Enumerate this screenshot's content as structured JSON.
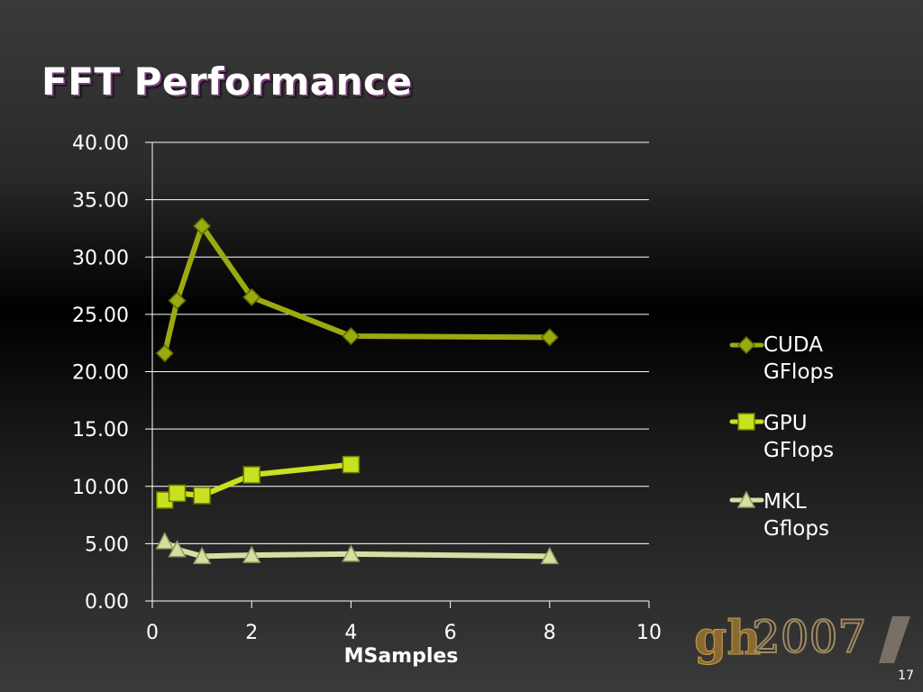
{
  "slide": {
    "title": "FFT Performance",
    "page_number": "17"
  },
  "colors": {
    "cuda": "#9aaa10",
    "gpu": "#c8e020",
    "mkl": "#d4e0a0",
    "axis": "#ffffff",
    "grid": "#ffffff"
  },
  "chart_data": {
    "type": "line",
    "xlabel": "MSamples",
    "ylabel": "",
    "xlim": [
      0,
      10
    ],
    "ylim": [
      0,
      40
    ],
    "xticks": [
      "0",
      "2",
      "4",
      "6",
      "8",
      "10"
    ],
    "yticks": [
      "0.00",
      "5.00",
      "10.00",
      "15.00",
      "20.00",
      "25.00",
      "30.00",
      "35.00",
      "40.00"
    ],
    "grid": true,
    "legend_position": "right",
    "series": [
      {
        "name": "CUDA\nGFlops",
        "marker": "diamond",
        "x": [
          0.25,
          0.5,
          1,
          2,
          4,
          8
        ],
        "y": [
          21.6,
          26.2,
          32.7,
          26.5,
          23.1,
          23.0
        ]
      },
      {
        "name": "GPU\nGFlops",
        "marker": "square",
        "x": [
          0.25,
          0.5,
          1,
          2,
          4
        ],
        "y": [
          8.8,
          9.4,
          9.2,
          11.0,
          11.9
        ]
      },
      {
        "name": "MKL\nGflops",
        "marker": "triangle",
        "x": [
          0.25,
          0.5,
          1,
          2,
          4,
          8
        ],
        "y": [
          5.2,
          4.5,
          3.9,
          4.0,
          4.1,
          3.9
        ]
      }
    ]
  }
}
